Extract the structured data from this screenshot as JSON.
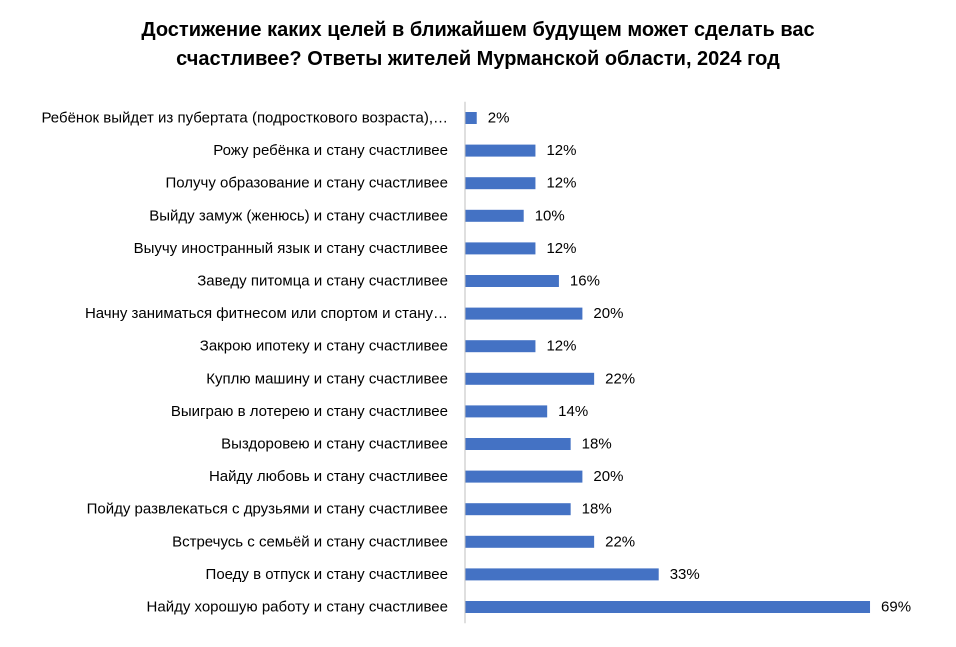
{
  "chart_data": {
    "type": "bar",
    "orientation": "horizontal",
    "title_lines": [
      "Достижение каких целей в ближайшем будущем может сделать вас",
      "счастливее? Ответы жителей Мурманской области, 2024 год"
    ],
    "categories": [
      "Ребёнок выйдет из пубертата (подросткового возраста),…",
      "Рожу ребёнка и стану счастливее",
      "Получу образование и стану счастливее",
      "Выйду замуж (женюсь) и стану счастливее",
      "Выучу иностранный язык и стану счастливее",
      "Заведу питомца и стану счастливее",
      "Начну заниматься фитнесом или спортом и стану…",
      "Закрою ипотеку и стану счастливее",
      "Куплю машину и стану счастливее",
      "Выиграю в лотерею и стану счастливее",
      "Выздоровею и стану счастливее",
      "Найду любовь и стану счастливее",
      "Пойду развлекаться с друзьями и стану счастливее",
      "Встречусь с семьёй и стану счастливее",
      "Поеду в отпуск и стану счастливее",
      "Найду хорошую работу и стану счастливее"
    ],
    "values": [
      2,
      12,
      12,
      10,
      12,
      16,
      20,
      12,
      22,
      14,
      18,
      20,
      18,
      22,
      33,
      69
    ],
    "value_labels": [
      "2%",
      "12%",
      "12%",
      "10%",
      "12%",
      "16%",
      "20%",
      "12%",
      "22%",
      "14%",
      "18%",
      "20%",
      "18%",
      "22%",
      "33%",
      "69%"
    ],
    "unit": "%",
    "xlim": [
      0,
      70
    ],
    "grid": false,
    "legend": "none",
    "bar_color": "#4472c4",
    "axis_color": "#bfbfbf"
  }
}
